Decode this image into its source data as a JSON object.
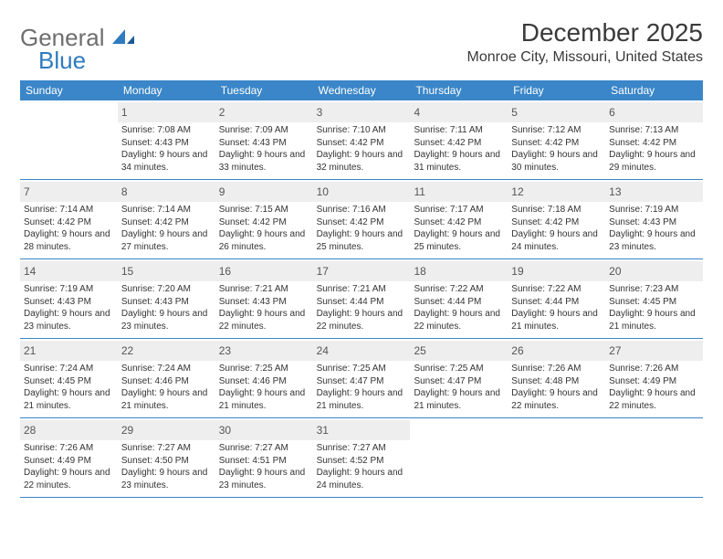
{
  "brand": {
    "text1": "General",
    "text2": "Blue"
  },
  "title": "December 2025",
  "location": "Monroe City, Missouri, United States",
  "colors": {
    "header_bg": "#3a86c8",
    "header_text": "#ffffff",
    "daynum_bg": "#eeeeee",
    "week_border": "#3a86c8",
    "body_text": "#333333",
    "logo_gray": "#6e6e6e",
    "logo_blue": "#2f7bbf"
  },
  "weekdays": [
    "Sunday",
    "Monday",
    "Tuesday",
    "Wednesday",
    "Thursday",
    "Friday",
    "Saturday"
  ],
  "labels": {
    "sunrise": "Sunrise:",
    "sunset": "Sunset:",
    "daylight": "Daylight:"
  },
  "weeks": [
    [
      {
        "empty": true
      },
      {
        "n": "1",
        "sr": "7:08 AM",
        "ss": "4:43 PM",
        "dl": "9 hours and 34 minutes."
      },
      {
        "n": "2",
        "sr": "7:09 AM",
        "ss": "4:43 PM",
        "dl": "9 hours and 33 minutes."
      },
      {
        "n": "3",
        "sr": "7:10 AM",
        "ss": "4:42 PM",
        "dl": "9 hours and 32 minutes."
      },
      {
        "n": "4",
        "sr": "7:11 AM",
        "ss": "4:42 PM",
        "dl": "9 hours and 31 minutes."
      },
      {
        "n": "5",
        "sr": "7:12 AM",
        "ss": "4:42 PM",
        "dl": "9 hours and 30 minutes."
      },
      {
        "n": "6",
        "sr": "7:13 AM",
        "ss": "4:42 PM",
        "dl": "9 hours and 29 minutes."
      }
    ],
    [
      {
        "n": "7",
        "sr": "7:14 AM",
        "ss": "4:42 PM",
        "dl": "9 hours and 28 minutes."
      },
      {
        "n": "8",
        "sr": "7:14 AM",
        "ss": "4:42 PM",
        "dl": "9 hours and 27 minutes."
      },
      {
        "n": "9",
        "sr": "7:15 AM",
        "ss": "4:42 PM",
        "dl": "9 hours and 26 minutes."
      },
      {
        "n": "10",
        "sr": "7:16 AM",
        "ss": "4:42 PM",
        "dl": "9 hours and 25 minutes."
      },
      {
        "n": "11",
        "sr": "7:17 AM",
        "ss": "4:42 PM",
        "dl": "9 hours and 25 minutes."
      },
      {
        "n": "12",
        "sr": "7:18 AM",
        "ss": "4:42 PM",
        "dl": "9 hours and 24 minutes."
      },
      {
        "n": "13",
        "sr": "7:19 AM",
        "ss": "4:43 PM",
        "dl": "9 hours and 23 minutes."
      }
    ],
    [
      {
        "n": "14",
        "sr": "7:19 AM",
        "ss": "4:43 PM",
        "dl": "9 hours and 23 minutes."
      },
      {
        "n": "15",
        "sr": "7:20 AM",
        "ss": "4:43 PM",
        "dl": "9 hours and 23 minutes."
      },
      {
        "n": "16",
        "sr": "7:21 AM",
        "ss": "4:43 PM",
        "dl": "9 hours and 22 minutes."
      },
      {
        "n": "17",
        "sr": "7:21 AM",
        "ss": "4:44 PM",
        "dl": "9 hours and 22 minutes."
      },
      {
        "n": "18",
        "sr": "7:22 AM",
        "ss": "4:44 PM",
        "dl": "9 hours and 22 minutes."
      },
      {
        "n": "19",
        "sr": "7:22 AM",
        "ss": "4:44 PM",
        "dl": "9 hours and 21 minutes."
      },
      {
        "n": "20",
        "sr": "7:23 AM",
        "ss": "4:45 PM",
        "dl": "9 hours and 21 minutes."
      }
    ],
    [
      {
        "n": "21",
        "sr": "7:24 AM",
        "ss": "4:45 PM",
        "dl": "9 hours and 21 minutes."
      },
      {
        "n": "22",
        "sr": "7:24 AM",
        "ss": "4:46 PM",
        "dl": "9 hours and 21 minutes."
      },
      {
        "n": "23",
        "sr": "7:25 AM",
        "ss": "4:46 PM",
        "dl": "9 hours and 21 minutes."
      },
      {
        "n": "24",
        "sr": "7:25 AM",
        "ss": "4:47 PM",
        "dl": "9 hours and 21 minutes."
      },
      {
        "n": "25",
        "sr": "7:25 AM",
        "ss": "4:47 PM",
        "dl": "9 hours and 21 minutes."
      },
      {
        "n": "26",
        "sr": "7:26 AM",
        "ss": "4:48 PM",
        "dl": "9 hours and 22 minutes."
      },
      {
        "n": "27",
        "sr": "7:26 AM",
        "ss": "4:49 PM",
        "dl": "9 hours and 22 minutes."
      }
    ],
    [
      {
        "n": "28",
        "sr": "7:26 AM",
        "ss": "4:49 PM",
        "dl": "9 hours and 22 minutes."
      },
      {
        "n": "29",
        "sr": "7:27 AM",
        "ss": "4:50 PM",
        "dl": "9 hours and 23 minutes."
      },
      {
        "n": "30",
        "sr": "7:27 AM",
        "ss": "4:51 PM",
        "dl": "9 hours and 23 minutes."
      },
      {
        "n": "31",
        "sr": "7:27 AM",
        "ss": "4:52 PM",
        "dl": "9 hours and 24 minutes."
      },
      {
        "empty": true
      },
      {
        "empty": true
      },
      {
        "empty": true
      }
    ]
  ]
}
